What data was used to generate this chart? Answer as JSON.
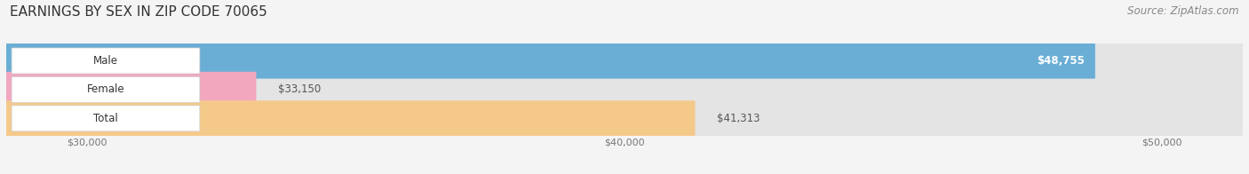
{
  "title": "EARNINGS BY SEX IN ZIP CODE 70065",
  "source": "Source: ZipAtlas.com",
  "categories": [
    "Male",
    "Female",
    "Total"
  ],
  "values": [
    48755,
    33150,
    41313
  ],
  "bar_colors": [
    "#6aaed6",
    "#f2a7bf",
    "#f5c98a"
  ],
  "value_labels": [
    "$48,755",
    "$33,150",
    "$41,313"
  ],
  "value_label_inside": [
    true,
    false,
    false
  ],
  "xmin": 28500,
  "xmax": 51500,
  "xticks": [
    30000,
    40000,
    50000
  ],
  "xtick_labels": [
    "$30,000",
    "$40,000",
    "$50,000"
  ],
  "background_color": "#f4f4f4",
  "bar_bg_color": "#e4e4e4",
  "title_fontsize": 11,
  "source_fontsize": 8.5,
  "bar_height": 0.62,
  "bar_gap": 0.38
}
